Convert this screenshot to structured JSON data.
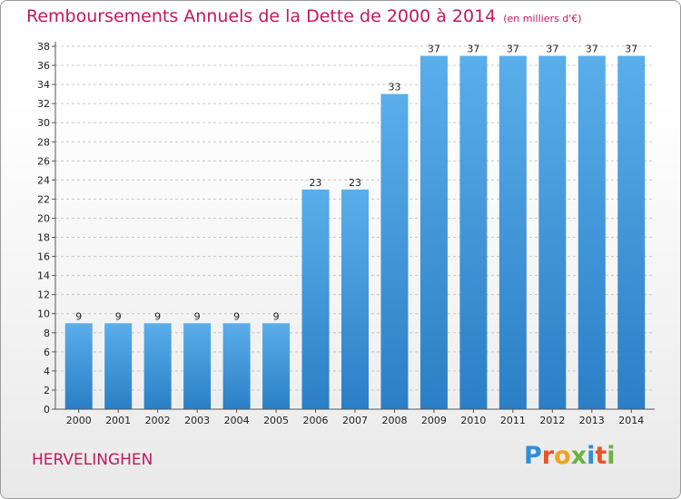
{
  "title": "Remboursements Annuels de la Dette de 2000 à 2014",
  "unit": "(en milliers d'€)",
  "location": "HERVELINGHEN",
  "logo": {
    "letters": [
      "P",
      "r",
      "o",
      "x",
      "i",
      "t",
      "i"
    ],
    "colors": [
      "#2e8fd8",
      "#e8542a",
      "#f0a31c",
      "#6cb33f",
      "#2e8fd8",
      "#e8542a",
      "#6cb33f"
    ]
  },
  "chart_data": {
    "type": "bar",
    "categories": [
      "2000",
      "2001",
      "2002",
      "2003",
      "2004",
      "2005",
      "2006",
      "2007",
      "2008",
      "2009",
      "2010",
      "2011",
      "2012",
      "2013",
      "2014"
    ],
    "values": [
      9,
      9,
      9,
      9,
      9,
      9,
      23,
      23,
      33,
      37,
      37,
      37,
      37,
      37,
      37
    ],
    "data_labels": [
      "9",
      "9",
      "9",
      "9",
      "9",
      "9",
      "23",
      "23",
      "33",
      "37",
      "37",
      "37",
      "37",
      "37",
      "37"
    ],
    "yticks": [
      0,
      2,
      4,
      6,
      8,
      10,
      12,
      14,
      16,
      18,
      20,
      22,
      24,
      26,
      28,
      30,
      32,
      34,
      36,
      38
    ],
    "ylim": [
      0,
      38
    ],
    "grid": "horizontal-dashed",
    "bar_color_top": "#5aaeea",
    "bar_color_bottom": "#2a7fc6"
  }
}
